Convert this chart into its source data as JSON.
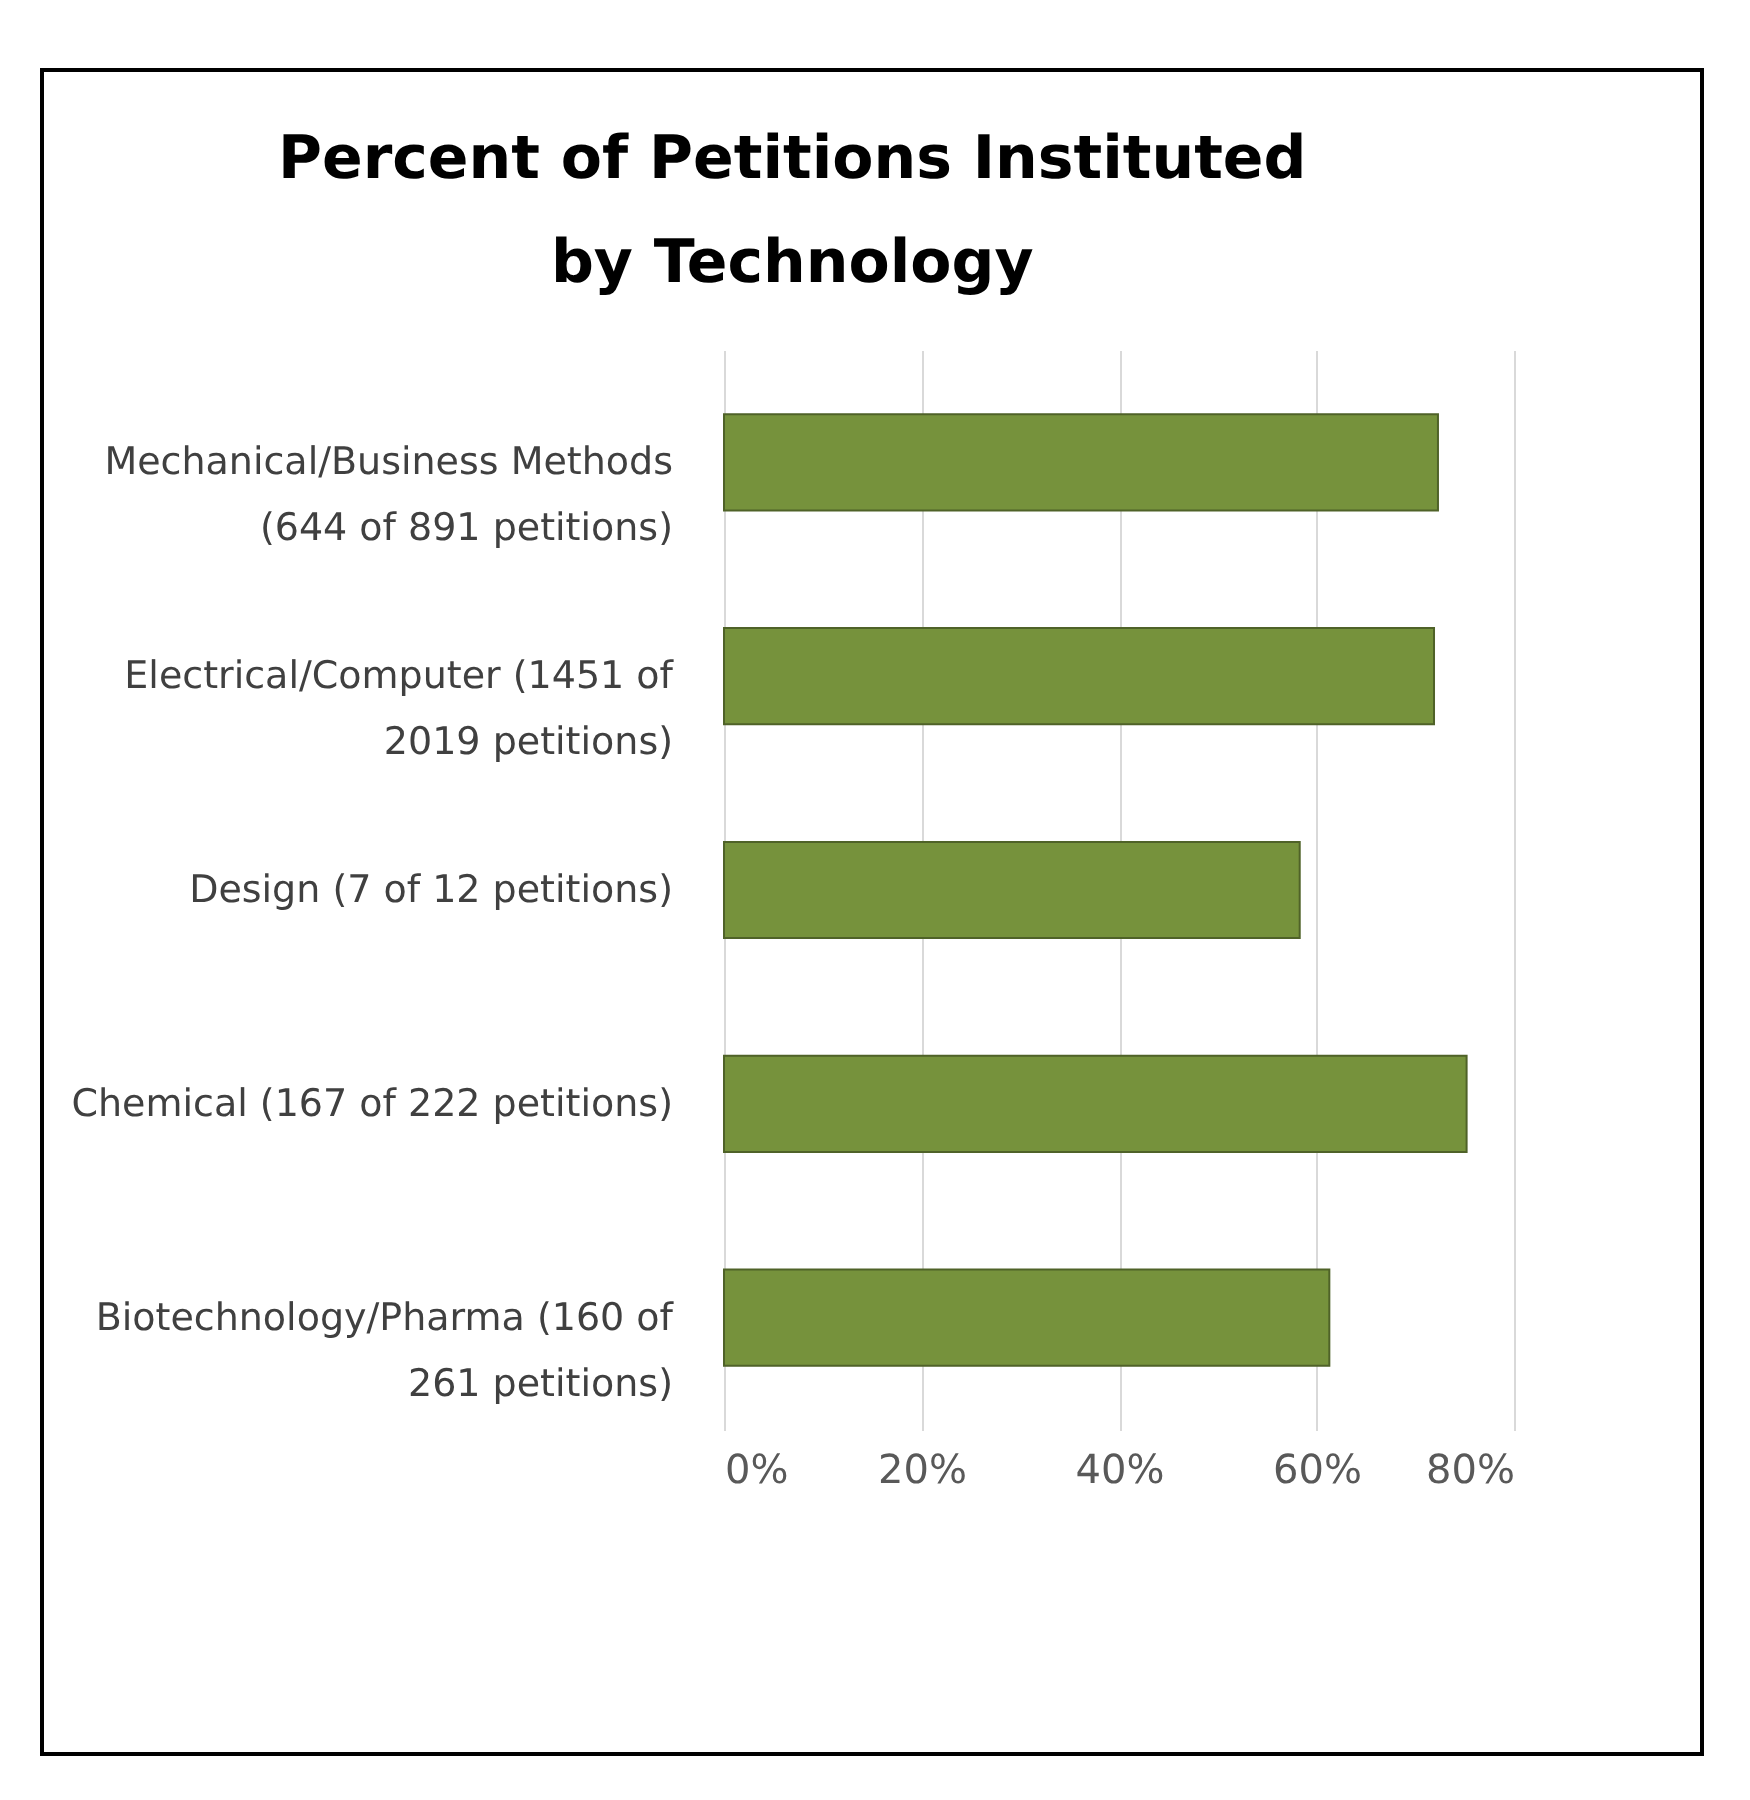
{
  "chart_data": {
    "type": "bar",
    "orientation": "horizontal",
    "title": "Percent of Petitions Instituted by Technology",
    "categories": [
      "Mechanical/Business Methods (644 of 891 petitions)",
      "Electrical/Computer (1451 of 2019 petitions)",
      "Design (7 of 12 petitions)",
      "Chemical (167 of 222 petitions)",
      "Biotechnology/Pharma (160 of 261 petitions)"
    ],
    "values": [
      72.3,
      71.9,
      58.3,
      75.2,
      61.3
    ],
    "color": "#76923c",
    "xlim": [
      0,
      80
    ],
    "xticks": [
      {
        "value": 0,
        "label": "0%"
      },
      {
        "value": 20,
        "label": "20%"
      },
      {
        "value": 40,
        "label": "40%"
      },
      {
        "value": 60,
        "label": "60%"
      },
      {
        "value": 80,
        "label": "80%"
      }
    ],
    "grid": "x"
  }
}
